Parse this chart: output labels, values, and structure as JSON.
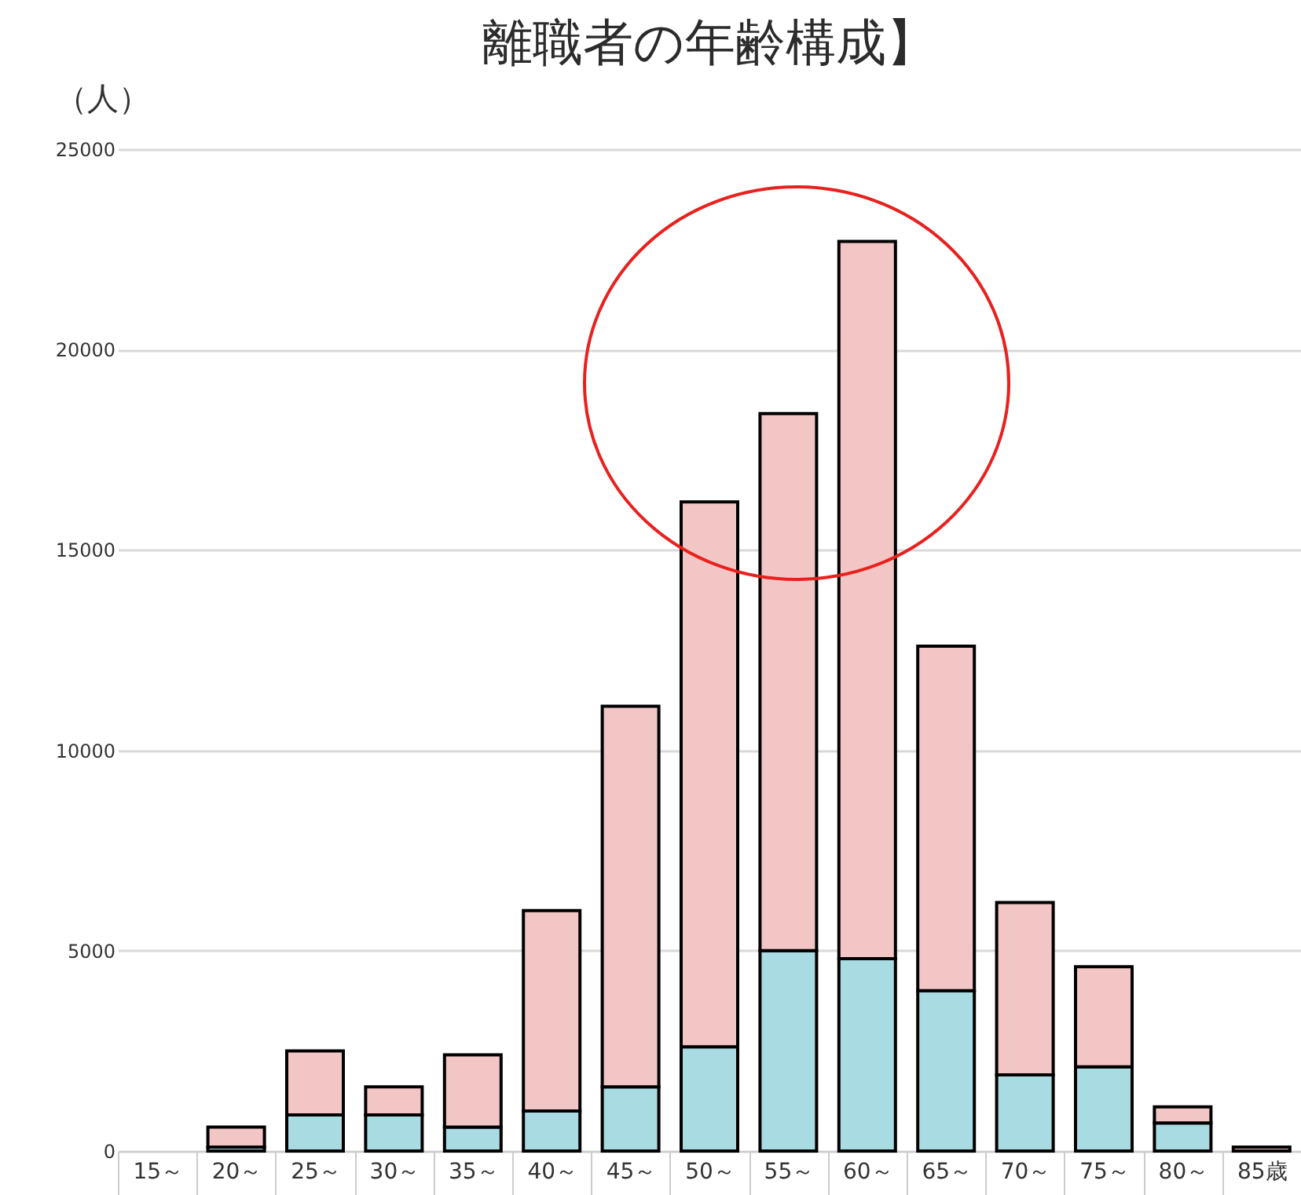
{
  "chart_data": {
    "type": "bar",
    "title": "離職者の年齢構成】",
    "ylabel": "（人）",
    "stacked": true,
    "grid": "y",
    "categories": [
      "15～",
      "20～",
      "25～",
      "30～",
      "35～",
      "40～",
      "45～",
      "50～",
      "55～",
      "60～",
      "65～",
      "70～",
      "75～",
      "80～",
      "85歳"
    ],
    "series": [
      {
        "color": "#a9dbe3",
        "values": [
          0,
          100,
          900,
          900,
          600,
          1000,
          1600,
          2600,
          5000,
          4800,
          4000,
          1900,
          2100,
          700,
          0
        ]
      },
      {
        "color": "#f3c6c6",
        "values": [
          0,
          500,
          1600,
          700,
          1800,
          5000,
          9500,
          13600,
          13400,
          17900,
          8600,
          4300,
          2500,
          400,
          100
        ]
      }
    ],
    "ylim": [
      0,
      25000
    ],
    "yticks": [
      0,
      5000,
      10000,
      15000,
      20000,
      25000
    ]
  }
}
